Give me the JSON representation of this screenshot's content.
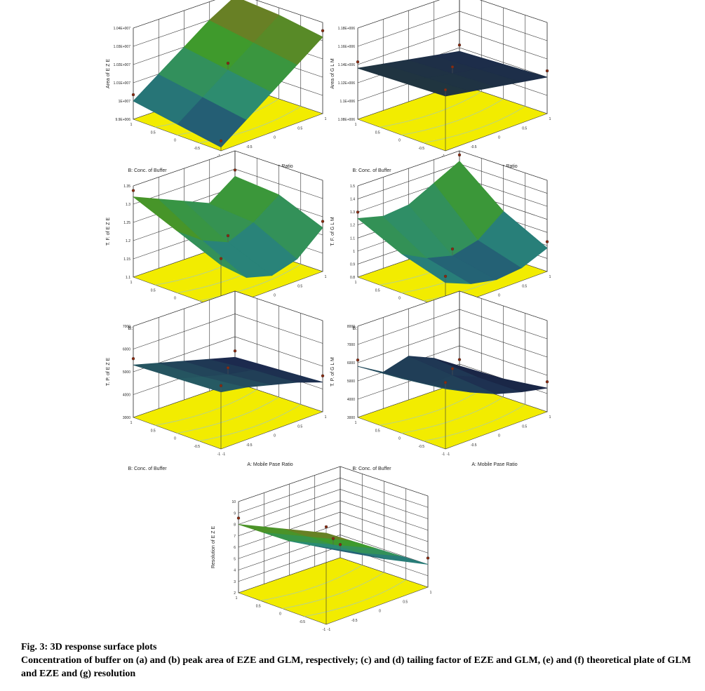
{
  "caption": {
    "title": "Fig. 3: 3D response surface plots",
    "text": "Concentration of buffer on (a) and (b) peak area of EZE and GLM, respectively; (c) and (d) tailing factor of EZE and GLM, (e) and (f) theoretical plate of GLM and EZE and (g) resolution"
  },
  "chart_data": [
    {
      "type": "surface",
      "zlabel": "Area of E Z E",
      "xlabel": "A: Mobile Pase Ratio",
      "ylabel": "B: Conc. of Buffer",
      "z_ticks": [
        "9.9E+006",
        "1E+007",
        "1.01E+007",
        "1.02E+007",
        "1.03E+007",
        "1.04E+007"
      ],
      "x_ticks": [
        "-1",
        "-0.5",
        "0",
        "0.5",
        "1"
      ],
      "y_ticks": [
        "-1",
        "-0.5",
        "0",
        "0.5",
        "1"
      ],
      "zlim": [
        9900000,
        10400000
      ],
      "grid": [
        [
          9920000,
          10020000,
          10120000,
          10220000,
          10320000
        ],
        [
          9960000,
          10060000,
          10160000,
          10260000,
          10360000
        ],
        [
          10000000,
          10100000,
          10200000,
          10300000,
          10380000
        ]
      ],
      "colors": [
        "#1c2a6e",
        "#2a8a7a",
        "#3f9a2a",
        "#8a6a20"
      ]
    },
    {
      "type": "surface",
      "zlabel": "Area of G L M",
      "xlabel": "A: Mobile Pase Ratio",
      "ylabel": "B: Conc. of Buffer",
      "z_ticks": [
        "1.08E+006",
        "1.1E+006",
        "1.12E+006",
        "1.14E+006",
        "1.16E+006",
        "1.18E+006"
      ],
      "x_ticks": [
        "-1",
        "-0.5",
        "0",
        "0.5",
        "1"
      ],
      "y_ticks": [
        "-1",
        "-0.5",
        "0",
        "0.5",
        "1"
      ],
      "zlim": [
        1080000,
        1180000
      ],
      "grid": [
        [
          1140000,
          1135000,
          1130000,
          1125000,
          1120000
        ],
        [
          1138000,
          1133000,
          1128000,
          1123000,
          1118000
        ],
        [
          1136000,
          1131000,
          1126000,
          1121000,
          1116000
        ]
      ],
      "colors": [
        "#101828",
        "#1c2a4e",
        "#223a3a",
        "#2a2a2a"
      ]
    },
    {
      "type": "surface",
      "zlabel": "T. F. of E Z E",
      "xlabel": "A: Mobile Pase Ratio",
      "ylabel": "B: Conc. of Buffer",
      "z_ticks": [
        "1.1",
        "1.15",
        "1.2",
        "1.25",
        "1.3",
        "1.35"
      ],
      "x_ticks": [
        "-1",
        "-0.5",
        "0",
        "0.5",
        "1"
      ],
      "y_ticks": [
        "-1",
        "-0.5",
        "0",
        "0.5",
        "1"
      ],
      "zlim": [
        1.1,
        1.35
      ],
      "grid": [
        [
          1.22,
          1.16,
          1.14,
          1.16,
          1.22
        ],
        [
          1.27,
          1.22,
          1.19,
          1.22,
          1.27
        ],
        [
          1.32,
          1.29,
          1.26,
          1.23,
          1.28
        ]
      ],
      "colors": [
        "#1c2a6e",
        "#2a8a7a",
        "#3f9a2a",
        "#8a6a20"
      ]
    },
    {
      "type": "surface",
      "zlabel": "T. F. of G L M",
      "xlabel": "A: Mobile Pase Ratio",
      "ylabel": "B: Conc. of Buffer",
      "z_ticks": [
        "0.8",
        "0.9",
        "1",
        "1.1",
        "1.2",
        "1.3",
        "1.4",
        "1.5"
      ],
      "x_ticks": [
        "-1",
        "-0.5",
        "0",
        "0.5",
        "1"
      ],
      "y_ticks": [
        "-1",
        "-0.5",
        "0",
        "0.5",
        "1"
      ],
      "zlim": [
        0.8,
        1.5
      ],
      "grid": [
        [
          1.0,
          0.92,
          0.88,
          0.9,
          0.98
        ],
        [
          1.1,
          1.0,
          0.95,
          1.0,
          1.15
        ],
        [
          1.25,
          1.2,
          1.22,
          1.32,
          1.42
        ]
      ],
      "colors": [
        "#1c2a6e",
        "#2a8a7a",
        "#3f9a2a",
        "#8a6a20"
      ]
    },
    {
      "type": "surface",
      "zlabel": "T. P. of E Z E",
      "xlabel": "A: Mobile Pase Ratio",
      "ylabel": "B: Conc. of Buffer",
      "z_ticks": [
        "3000",
        "4000",
        "5000",
        "6000",
        "7000"
      ],
      "x_ticks": [
        "-1",
        "-0.5",
        "0",
        "0.5",
        "1"
      ],
      "y_ticks": [
        "-1",
        "-0.5",
        "0",
        "0.5",
        "1"
      ],
      "zlim": [
        3000,
        7000
      ],
      "grid": [
        [
          5500,
          5300,
          5000,
          4700,
          4300
        ],
        [
          5400,
          5100,
          4800,
          4600,
          4200
        ],
        [
          5300,
          5000,
          4700,
          4400,
          4100
        ]
      ],
      "colors": [
        "#101828",
        "#1c2a4e",
        "#2a6a6a",
        "#2a8a9a"
      ]
    },
    {
      "type": "surface",
      "zlabel": "T. P. of G L M",
      "xlabel": "A: Mobile Pase Ratio",
      "ylabel": "B: Conc. of Buffer",
      "z_ticks": [
        "3000",
        "4000",
        "5000",
        "6000",
        "7000",
        "8000"
      ],
      "x_ticks": [
        "-1",
        "-0.5",
        "0",
        "0.5",
        "1"
      ],
      "y_ticks": [
        "-1",
        "-0.5",
        "0",
        "0.5",
        "1"
      ],
      "zlim": [
        3000,
        8000
      ],
      "grid": [
        [
          6300,
          5600,
          5000,
          4600,
          4300
        ],
        [
          6000,
          5200,
          5200,
          4600,
          4000
        ],
        [
          5800,
          5000,
          5400,
          4800,
          3900
        ]
      ],
      "colors": [
        "#101828",
        "#1c2a4e",
        "#2a6a6a",
        "#2a8a9a"
      ]
    },
    {
      "type": "surface",
      "zlabel": "Resolution of E Z E",
      "xlabel": "A: Mobile Pase Ratio",
      "ylabel": "B: Conc. of Buffer",
      "z_ticks": [
        "2",
        "3",
        "4",
        "5",
        "6",
        "7",
        "8",
        "9",
        "10"
      ],
      "x_ticks": [
        "-1",
        "-0.5",
        "0",
        "0.5",
        "1"
      ],
      "y_ticks": [
        "-1",
        "-0.5",
        "0",
        "0.5",
        "1"
      ],
      "zlim": [
        2,
        10
      ],
      "grid": [
        [
          10,
          8.5,
          7,
          5.5,
          4
        ],
        [
          9,
          7.5,
          6,
          4.5,
          3.2
        ],
        [
          8,
          6.5,
          5,
          3.8,
          2.6
        ]
      ],
      "colors": [
        "#1c2a6e",
        "#2a8a7a",
        "#3f9a2a",
        "#8a6a20"
      ]
    }
  ]
}
